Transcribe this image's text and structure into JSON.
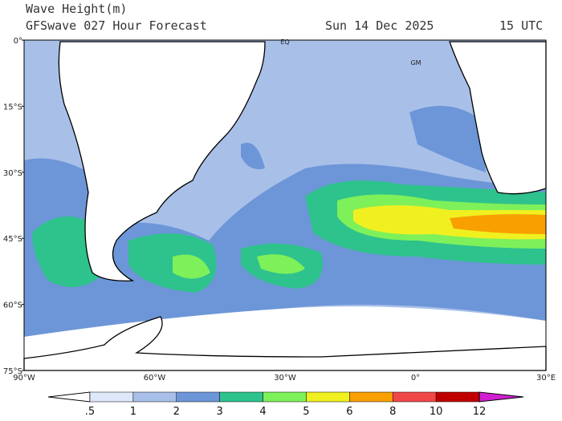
{
  "header": {
    "title": "Wave Height(m)",
    "subtitle": "GFSwave 027 Hour Forecast",
    "date": "Sun 14 Dec 2025",
    "time": "15 UTC"
  },
  "map": {
    "lat_labels": [
      "0°",
      "15°S",
      "30°S",
      "45°S",
      "60°S",
      "75°S"
    ],
    "lon_labels": [
      "90°W",
      "60°W",
      "30°W",
      "0°",
      "30°E"
    ],
    "places": [
      "EQ",
      "GM"
    ]
  },
  "colorbar": {
    "labels": [
      ".5",
      "1",
      "2",
      "3",
      "4",
      "5",
      "6",
      "8",
      "10",
      "12"
    ],
    "colors": [
      "#ffffff",
      "#dde8f8",
      "#a8c0e8",
      "#6d96d8",
      "#2ec28c",
      "#7ef05a",
      "#f0f020",
      "#f8a000",
      "#f04848",
      "#c00000",
      "#d020d0"
    ]
  }
}
